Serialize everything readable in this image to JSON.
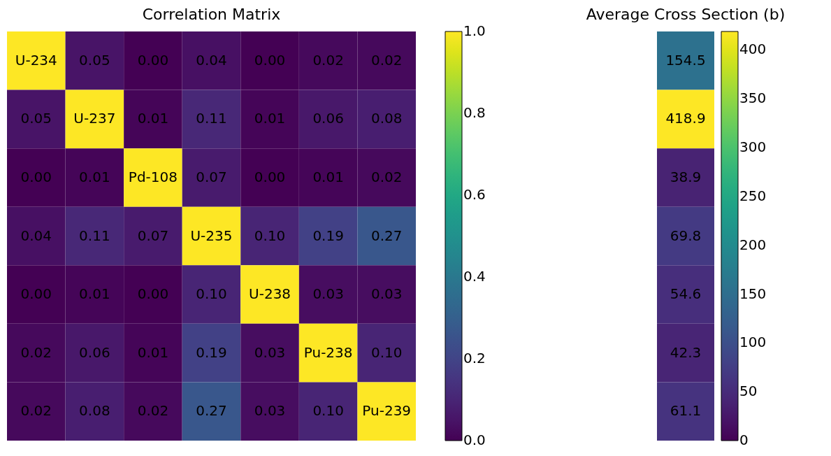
{
  "chart_data": [
    {
      "type": "heatmap",
      "title": "Correlation Matrix",
      "categories": [
        null,
        null,
        null,
        null,
        null,
        null,
        null
      ],
      "y_categories": [
        null,
        null,
        null,
        null,
        null,
        null,
        null
      ],
      "cells": [
        [
          1,
          0.05,
          0.0,
          0.04,
          0.0,
          0.02,
          0.02
        ],
        [
          0.05,
          1,
          0.01,
          0.11,
          0.01,
          0.06,
          0.08
        ],
        [
          0.0,
          0.01,
          1,
          0.07,
          0.0,
          0.01,
          0.02
        ],
        [
          0.04,
          0.11,
          0.07,
          1,
          0.1,
          0.19,
          0.27
        ],
        [
          0.0,
          0.01,
          0.0,
          0.1,
          1,
          0.03,
          0.03
        ],
        [
          0.02,
          0.06,
          0.01,
          0.19,
          0.03,
          1,
          0.1
        ],
        [
          0.02,
          0.08,
          0.02,
          0.27,
          0.03,
          0.1,
          1
        ]
      ],
      "cell_labels": [
        [
          "U-234",
          "0.05",
          "0.00",
          "0.04",
          "0.00",
          "0.02",
          "0.02"
        ],
        [
          "0.05",
          "U-237",
          "0.01",
          "0.11",
          "0.01",
          "0.06",
          "0.08"
        ],
        [
          "0.00",
          "0.01",
          "Pd-108",
          "0.07",
          "0.00",
          "0.01",
          "0.02"
        ],
        [
          "0.04",
          "0.11",
          "0.07",
          "U-235",
          "0.10",
          "0.19",
          "0.27"
        ],
        [
          "0.00",
          "0.01",
          "0.00",
          "0.10",
          "U-238",
          "0.03",
          "0.03"
        ],
        [
          "0.02",
          "0.06",
          "0.01",
          "0.19",
          "0.03",
          "Pu-238",
          "0.10"
        ],
        [
          "0.02",
          "0.08",
          "0.02",
          "0.27",
          "0.03",
          "0.10",
          "Pu-239"
        ]
      ],
      "clim": [
        0,
        1
      ],
      "cticks": [
        {
          "value": 0,
          "label": "0.0"
        },
        {
          "value": 0.2,
          "label": "0.2"
        },
        {
          "value": 0.4,
          "label": "0.4"
        },
        {
          "value": 0.6,
          "label": "0.6"
        },
        {
          "value": 0.8,
          "label": "0.8"
        },
        {
          "value": 1,
          "label": "1.0"
        }
      ]
    },
    {
      "type": "heatmap",
      "title": "Average Cross Section (b)",
      "categories": [
        null
      ],
      "y_categories": [
        null,
        null,
        null,
        null,
        null,
        null,
        null
      ],
      "cells": [
        [
          154.5
        ],
        [
          418.9
        ],
        [
          38.9
        ],
        [
          69.8
        ],
        [
          54.6
        ],
        [
          42.3
        ],
        [
          61.1
        ]
      ],
      "data_labels": true,
      "clim": [
        0,
        418.9
      ],
      "cticks": [
        0,
        50,
        100,
        150,
        200,
        250,
        300,
        350,
        400
      ]
    }
  ]
}
